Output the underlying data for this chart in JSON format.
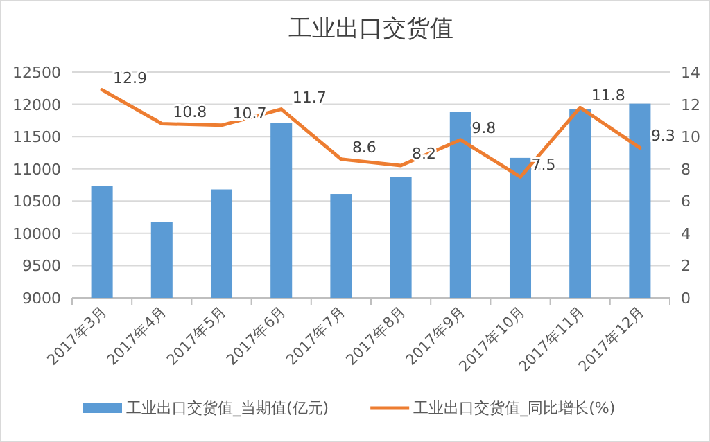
{
  "chart_data": {
    "type": "bar",
    "title": "工业出口交货值",
    "categories": [
      "2017年3月",
      "2017年4月",
      "2017年5月",
      "2017年6月",
      "2017年7月",
      "2017年8月",
      "2017年9月",
      "2017年10月",
      "2017年11月",
      "2017年12月"
    ],
    "series": [
      {
        "name": "工业出口交货值_当期值(亿元)",
        "color": "#5b9bd5",
        "values": [
          10730,
          10180,
          10680,
          11710,
          10610,
          10870,
          11880,
          11170,
          11920,
          12010
        ]
      },
      {
        "name": "工业出口交货值_同比增长(%)",
        "type": "line",
        "axis": "y2",
        "color": "#ed7d31",
        "values": [
          12.9,
          10.8,
          10.7,
          11.7,
          8.6,
          8.2,
          9.8,
          7.5,
          11.8,
          9.3
        ],
        "value_labels": [
          "12.9",
          "10.8",
          "10.7",
          "11.7",
          "8.6",
          "8.2",
          "9.8",
          "7.5",
          "11.8",
          "9.3"
        ]
      }
    ],
    "ylim": [
      9000,
      12500
    ],
    "yticks": [
      9000,
      9500,
      10000,
      10500,
      11000,
      11500,
      12000,
      12500
    ],
    "y2lim": [
      0,
      14
    ],
    "y2ticks": [
      0,
      2,
      4,
      6,
      8,
      10,
      12,
      14
    ],
    "grid": "y",
    "legend": "bottom",
    "marker": "none",
    "line_style": "solid"
  }
}
